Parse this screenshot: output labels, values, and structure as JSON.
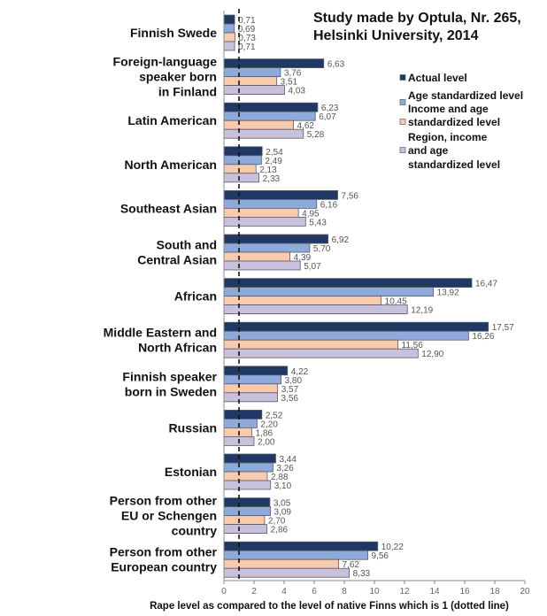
{
  "chart_data": {
    "type": "bar",
    "orientation": "horizontal",
    "title": "Study made by Optula, Nr. 265, Helsinki University, 2014",
    "title_lines": [
      "Study made by Optula, Nr. 265,",
      "Helsinki University, 2014"
    ],
    "xlabel": "Rape level as compared to the level of native Finns which is 1 (dotted line)",
    "ylabel": "",
    "xlim": [
      0,
      20
    ],
    "xticks": [
      0,
      2,
      4,
      6,
      8,
      10,
      12,
      14,
      16,
      18,
      20
    ],
    "reference_line": 1,
    "grid": false,
    "legend_placement": "top-right",
    "categories": [
      "Finnish Swede",
      "Foreign-language speaker born in Finland",
      "Latin American",
      "North American",
      "Southeast Asian",
      "South and Central Asian",
      "African",
      "Middle Eastern and North African",
      "Finnish speaker born in Sweden",
      "Russian",
      "Estonian",
      "Person from other EU or Schengen country",
      "Person from other European country"
    ],
    "category_lines": [
      [
        "Finnish Swede"
      ],
      [
        "Foreign-language",
        "speaker born",
        "in Finland"
      ],
      [
        "Latin American"
      ],
      [
        "North American"
      ],
      [
        "Southeast Asian"
      ],
      [
        "South and",
        "Central Asian"
      ],
      [
        "African"
      ],
      [
        "Middle Eastern and",
        "North African"
      ],
      [
        "Finnish speaker",
        "born in Sweden"
      ],
      [
        "Russian"
      ],
      [
        "Estonian"
      ],
      [
        "Person from other",
        "EU or Schengen",
        "country"
      ],
      [
        "Person from other",
        "European country"
      ]
    ],
    "series": [
      {
        "name": "Actual level",
        "legend_lines": [
          "Actual level"
        ],
        "color": "#1f3864",
        "values": [
          0.71,
          6.63,
          6.23,
          2.54,
          7.56,
          6.92,
          16.47,
          17.57,
          4.22,
          2.52,
          3.44,
          3.05,
          10.22
        ],
        "labels": [
          "0,71",
          "6,63",
          "6,23",
          "2,54",
          "7,56",
          "6,92",
          "16,47",
          "17,57",
          "4,22",
          "2,52",
          "3,44",
          "3,05",
          "10,22"
        ]
      },
      {
        "name": "Age standardized level",
        "legend_lines": [
          "Age standardized level"
        ],
        "color": "#8eaadb",
        "values": [
          0.69,
          3.76,
          6.07,
          2.49,
          6.16,
          5.7,
          13.92,
          16.26,
          3.8,
          2.2,
          3.26,
          3.09,
          9.56
        ],
        "labels": [
          "0,69",
          "3,76",
          "6,07",
          "2,49",
          "6,16",
          "5,70",
          "13,92",
          "16,26",
          "3,80",
          "2,20",
          "3,26",
          "3,09",
          "9,56"
        ]
      },
      {
        "name": "Income and age standardized level",
        "legend_lines": [
          "Income and age",
          "standardized level"
        ],
        "color": "#f8cbad",
        "values": [
          0.73,
          3.51,
          4.62,
          2.13,
          4.95,
          4.39,
          10.45,
          11.56,
          3.57,
          1.86,
          2.88,
          2.7,
          7.62
        ],
        "labels": [
          "0,73",
          "3,51",
          "4,62",
          "2,13",
          "4,95",
          "4,39",
          "10,45",
          "11,56",
          "3,57",
          "1,86",
          "2,88",
          "2,70",
          "7,62"
        ]
      },
      {
        "name": "Region, income and age standardized level",
        "legend_lines": [
          "Region, income",
          "and age",
          "standardized level"
        ],
        "color": "#c9c0dc",
        "values": [
          0.71,
          4.03,
          5.28,
          2.33,
          5.43,
          5.07,
          12.19,
          12.9,
          3.56,
          2.0,
          3.1,
          2.86,
          8.33
        ],
        "labels": [
          "0,71",
          "4,03",
          "5,28",
          "2,33",
          "5,43",
          "5,07",
          "12,19",
          "12,90",
          "3,56",
          "2,00",
          "3,10",
          "2,86",
          "8,33"
        ]
      }
    ]
  }
}
